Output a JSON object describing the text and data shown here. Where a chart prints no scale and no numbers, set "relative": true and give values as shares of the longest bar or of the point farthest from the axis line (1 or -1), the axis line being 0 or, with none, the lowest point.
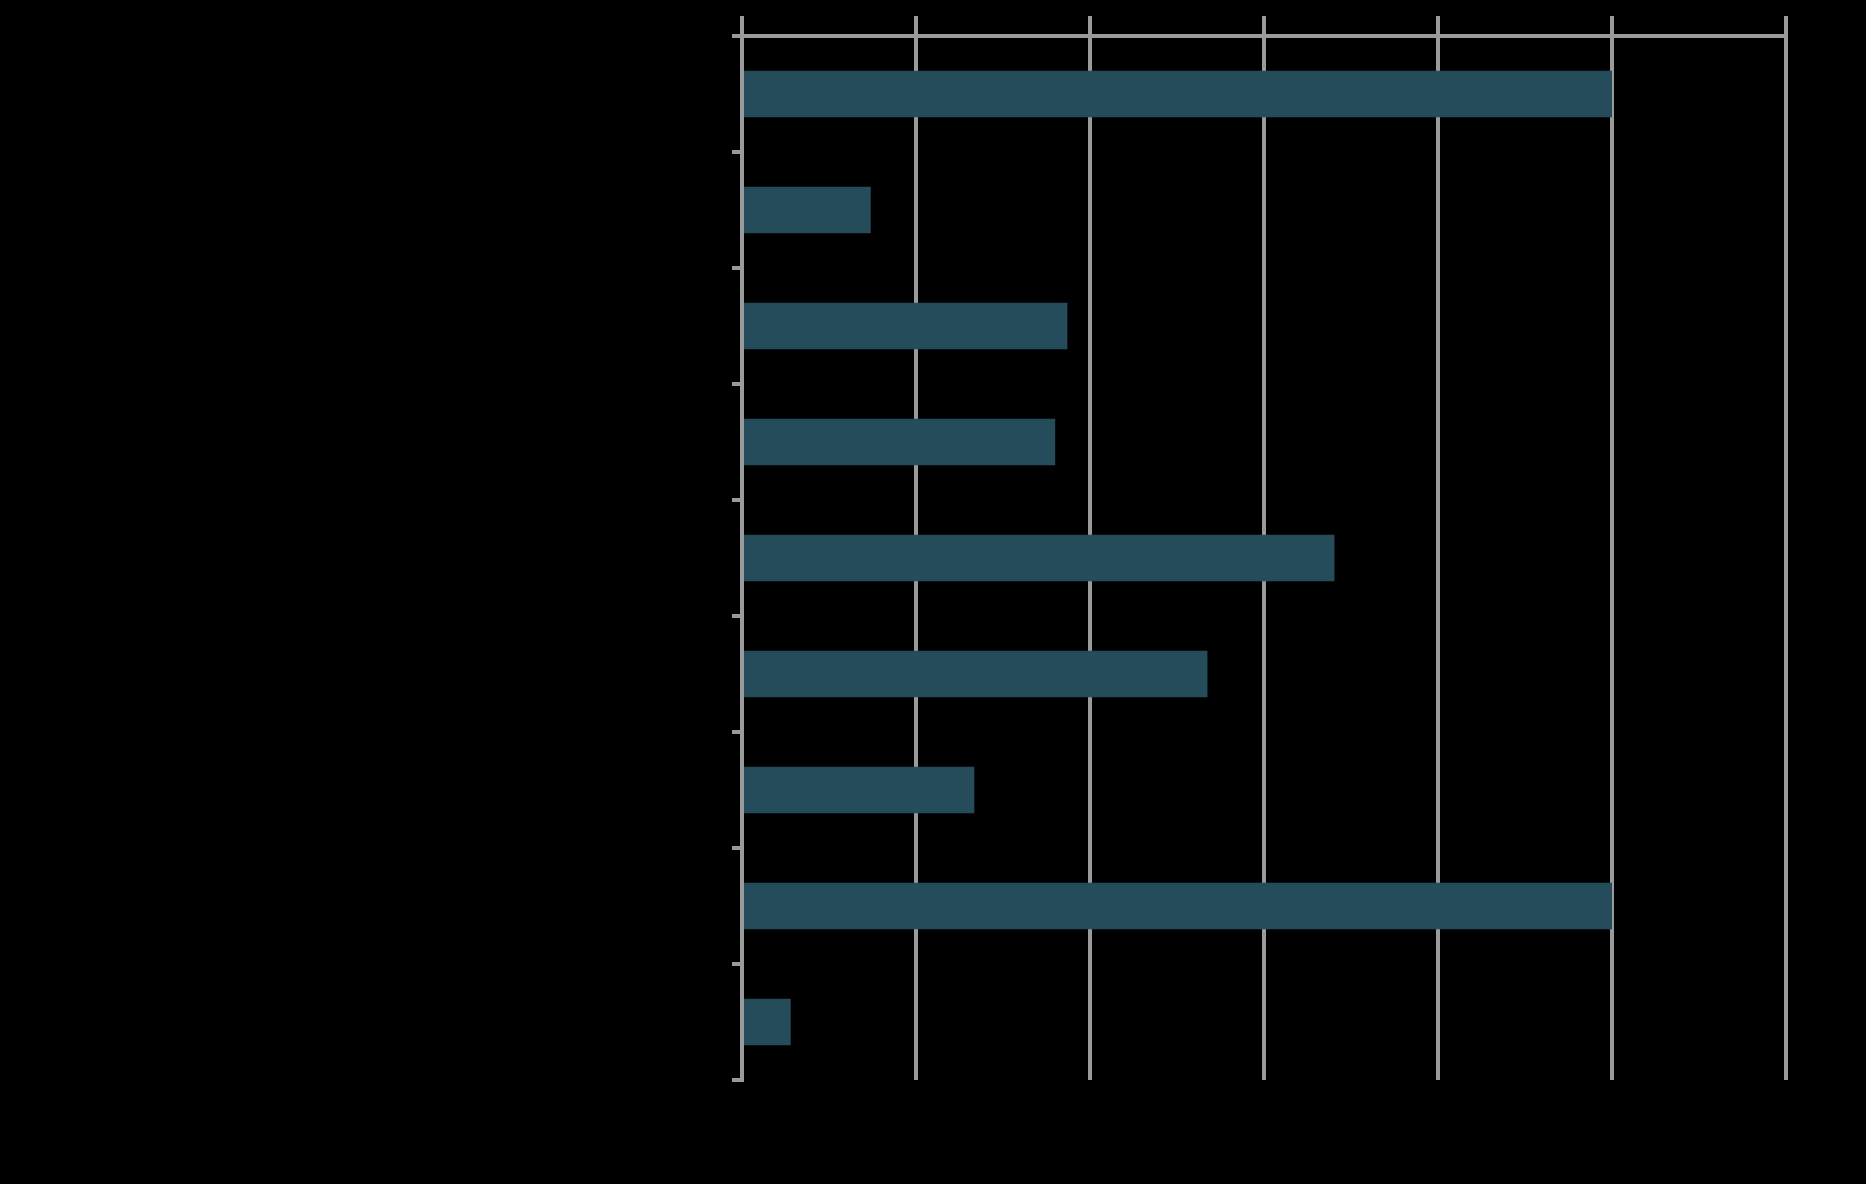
{
  "chart_data": {
    "type": "bar",
    "orientation": "horizontal",
    "relative": true,
    "grid": "x",
    "categories": [
      null,
      null,
      null,
      null,
      null,
      null,
      null,
      null,
      null
    ],
    "series": [
      {
        "color": "#254c5b",
        "values": [
          1,
          0.148,
          0.374,
          0.36,
          0.681,
          0.535,
          0.267,
          1,
          0.056
        ]
      }
    ]
  }
}
